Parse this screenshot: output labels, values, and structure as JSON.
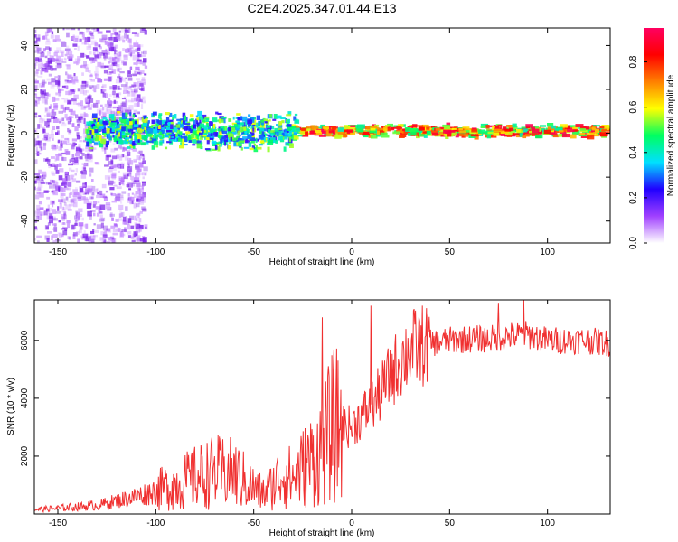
{
  "title": "C2E4.2025.347.01.44.E13",
  "colors": {
    "snr_line": "#f03030",
    "frame": "#000000"
  },
  "chart_data": [
    {
      "type": "heatmap",
      "title": "C2E4.2025.347.01.44.E13",
      "xlabel": "Height of straight line (km)",
      "ylabel": "Frequency (Hz)",
      "xlim": [
        -162,
        132
      ],
      "ylim": [
        -50,
        48
      ],
      "xticks": [
        -150,
        -100,
        -50,
        0,
        50,
        100
      ],
      "yticks": [
        -40,
        -20,
        0,
        20,
        40
      ],
      "colorbar": {
        "label": "Normalized spectral amplitude",
        "range": [
          0.0,
          0.95
        ],
        "ticks": [
          0.0,
          0.2,
          0.4,
          0.6,
          0.8
        ],
        "colormap": [
          "#ffffff",
          "#a040ff",
          "#2000ff",
          "#00e0ff",
          "#00ff60",
          "#ffff00",
          "#ff8000",
          "#ff0000",
          "#ff0060"
        ]
      },
      "features": [
        {
          "region_km": [
            -162,
            -105
          ],
          "freq_hz": [
            -50,
            48
          ],
          "description": "scattered noise",
          "amplitude": [
            0.0,
            0.25
          ]
        },
        {
          "region_km": [
            -135,
            -28
          ],
          "freq_hz": [
            -8,
            10
          ],
          "description": "broad signal band",
          "amplitude": [
            0.2,
            0.6
          ]
        },
        {
          "region_km": [
            -28,
            132
          ],
          "freq_hz": [
            -2,
            4
          ],
          "description": "narrow stable line",
          "amplitude": [
            0.4,
            0.95
          ]
        }
      ]
    },
    {
      "type": "line",
      "xlabel": "Height of straight line (km)",
      "ylabel": "SNR (10 * v/v)",
      "xlim": [
        -162,
        132
      ],
      "ylim": [
        0,
        7400
      ],
      "xticks": [
        -150,
        -100,
        -50,
        0,
        50,
        100
      ],
      "yticks": [
        2000,
        4000,
        6000
      ],
      "series": [
        {
          "name": "SNR",
          "x": [
            -162,
            -150,
            -140,
            -130,
            -120,
            -110,
            -100,
            -90,
            -80,
            -70,
            -60,
            -50,
            -45,
            -40,
            -35,
            -30,
            -25,
            -20,
            -15,
            -10,
            -5,
            0,
            5,
            10,
            15,
            20,
            25,
            30,
            40,
            50,
            60,
            70,
            80,
            90,
            100,
            110,
            120,
            132
          ],
          "y": [
            150,
            200,
            250,
            300,
            450,
            600,
            800,
            1000,
            1250,
            1450,
            1400,
            900,
            700,
            1000,
            1400,
            1200,
            1600,
            1900,
            2200,
            3000,
            3100,
            3000,
            3400,
            3700,
            4200,
            4800,
            5300,
            5700,
            5900,
            6000,
            6050,
            6050,
            6150,
            6200,
            6000,
            6000,
            6000,
            5900
          ]
        }
      ],
      "spikes": [
        {
          "x": -15,
          "y": 6800
        },
        {
          "x": 10,
          "y": 7200
        },
        {
          "x": 75,
          "y": 7300
        },
        {
          "x": 88,
          "y": 7400
        }
      ]
    }
  ]
}
